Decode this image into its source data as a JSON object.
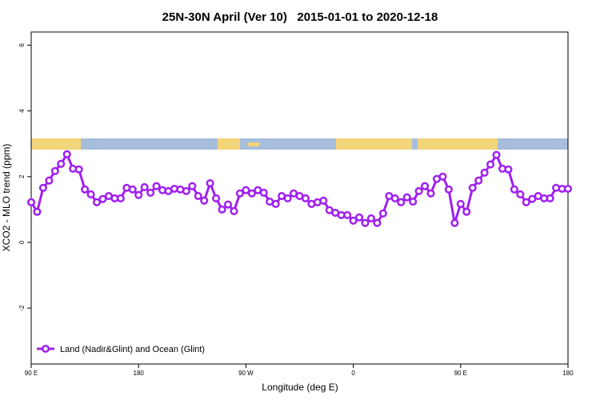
{
  "chart_data": {
    "type": "line",
    "title": "25N-30N April (Ver 10)   2015-01-01 to 2020-12-18",
    "x_label": "Longitude (deg E)",
    "y_label": "XCO2 - MLO trend (ppm)",
    "x": [
      90,
      95,
      100,
      105,
      110,
      115,
      120,
      125,
      130,
      135,
      140,
      145,
      150,
      155,
      160,
      165,
      170,
      175,
      180,
      185,
      190,
      195,
      200,
      205,
      210,
      215,
      220,
      225,
      230,
      235,
      240,
      245,
      250,
      255,
      260,
      265,
      270,
      275,
      280,
      285,
      290,
      295,
      300,
      305,
      310,
      315,
      320,
      325,
      330,
      335,
      340,
      345,
      350,
      355,
      360,
      365,
      370,
      375,
      380,
      385,
      390,
      395,
      400,
      405,
      410,
      415,
      420,
      425,
      430,
      435,
      440,
      445,
      450,
      455,
      460,
      465,
      470,
      475,
      480,
      485,
      490,
      495,
      500,
      505,
      510,
      515,
      520,
      525,
      530,
      535,
      540
    ],
    "series": [
      {
        "name": "Land (Nadir&Glint) and Ocean (Glint)",
        "color": "#a020f0",
        "values": [
          1.22,
          0.93,
          1.66,
          1.88,
          2.17,
          2.39,
          2.68,
          2.24,
          2.22,
          1.61,
          1.46,
          1.22,
          1.32,
          1.41,
          1.34,
          1.34,
          1.66,
          1.61,
          1.44,
          1.68,
          1.51,
          1.71,
          1.59,
          1.56,
          1.63,
          1.61,
          1.56,
          1.71,
          1.41,
          1.27,
          1.8,
          1.34,
          1.0,
          1.15,
          0.95,
          1.49,
          1.59,
          1.49,
          1.59,
          1.51,
          1.24,
          1.17,
          1.41,
          1.34,
          1.49,
          1.41,
          1.34,
          1.17,
          1.22,
          1.27,
          0.98,
          0.9,
          0.83,
          0.83,
          0.66,
          0.76,
          0.59,
          0.73,
          0.59,
          0.88,
          1.41,
          1.34,
          1.22,
          1.37,
          1.24,
          1.56,
          1.71,
          1.49,
          1.93,
          2.0,
          1.61,
          0.59,
          1.17,
          0.93,
          1.66,
          1.88,
          2.12,
          2.37,
          2.66,
          2.24,
          2.22,
          1.61,
          1.46,
          1.22,
          1.32,
          1.41,
          1.34,
          1.34,
          1.66,
          1.63,
          1.63
        ]
      }
    ],
    "xlim": [
      90,
      540
    ],
    "xticks": [
      {
        "value": 90,
        "label": "90 E"
      },
      {
        "value": 180,
        "label": "180"
      },
      {
        "value": 270,
        "label": "90 W"
      },
      {
        "value": 360,
        "label": "0"
      },
      {
        "value": 450,
        "label": "90 E"
      },
      {
        "value": 540,
        "label": "180"
      }
    ],
    "ylim": [
      -3.7,
      6.4
    ],
    "yticks": [
      -2,
      0,
      2,
      4,
      6
    ],
    "legend": "bottom-left"
  }
}
